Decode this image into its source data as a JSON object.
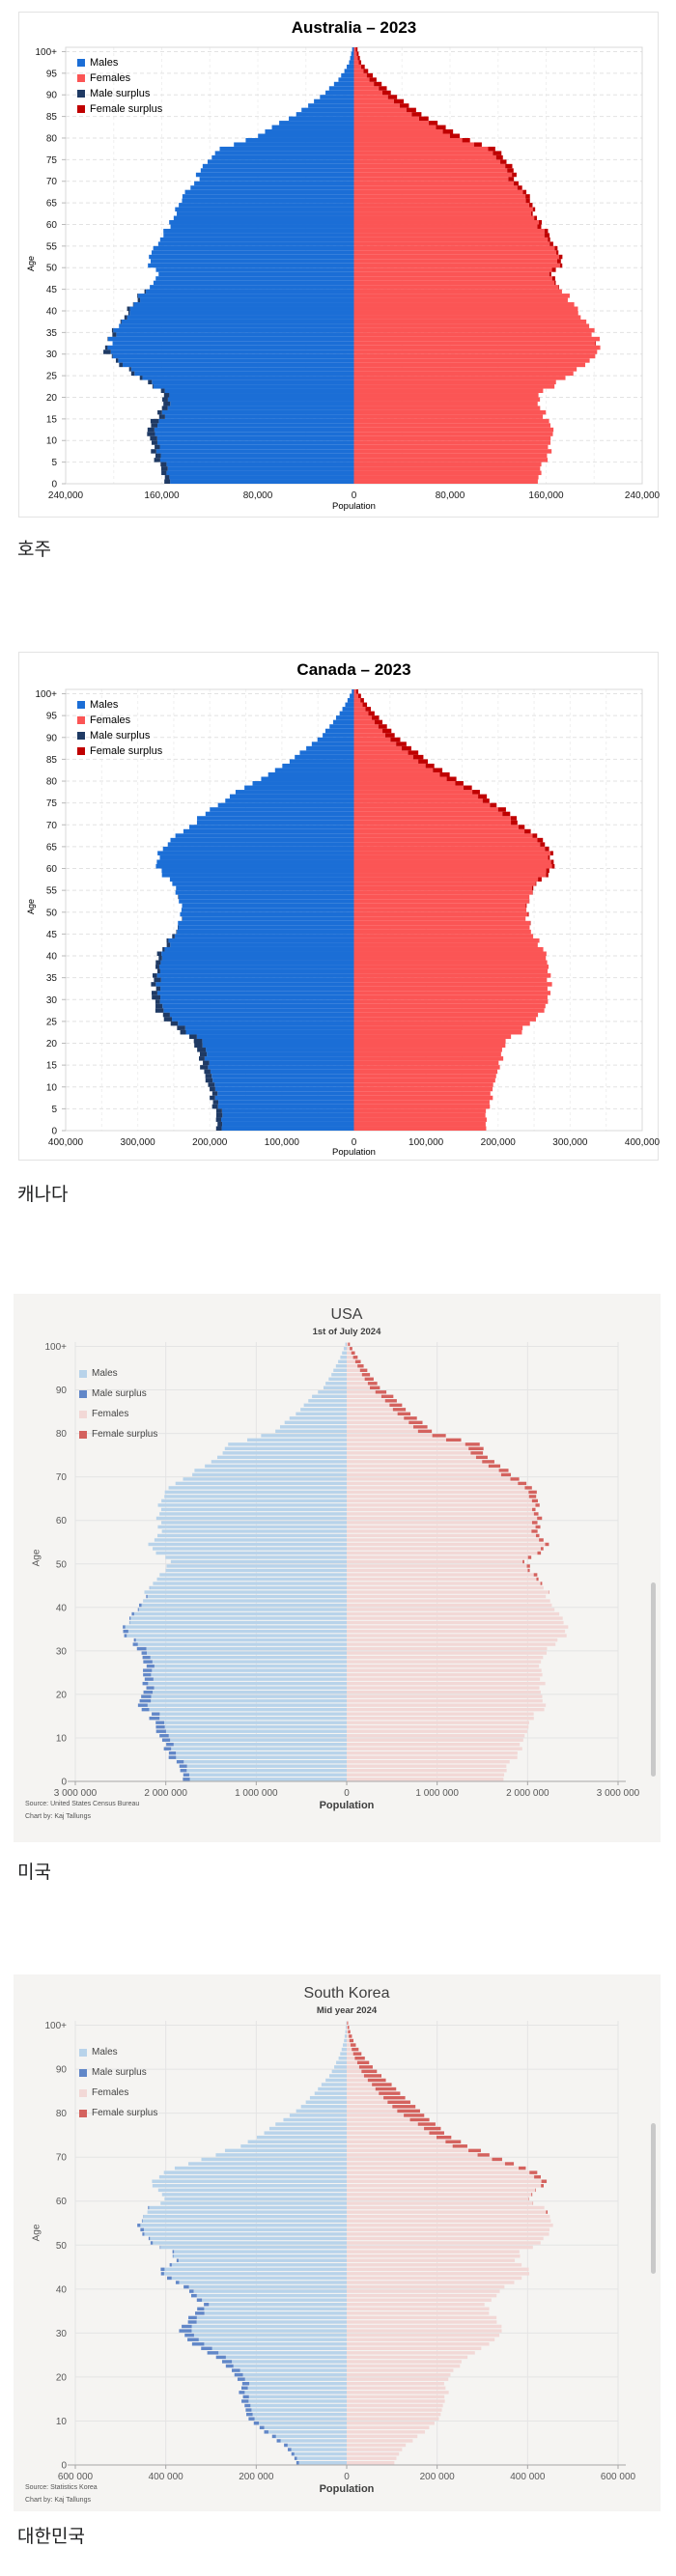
{
  "chart_data": [
    {
      "type": "bar",
      "variant": "population-pyramid",
      "title": "Australia – 2023",
      "caption": "호주",
      "xlabel": "Population",
      "ylabel": "Age",
      "x_max": 240000,
      "x_tick_step": 80000,
      "x_minor_step": 40000,
      "number_separator": ",",
      "x_tick_labels": [
        "240,000",
        "160,000",
        "80,000",
        "0",
        "80,000",
        "160,000",
        "240,000"
      ],
      "y_tick_labels": [
        "0",
        "5",
        "10",
        "15",
        "20",
        "25",
        "30",
        "35",
        "40",
        "45",
        "50",
        "55",
        "60",
        "65",
        "70",
        "75",
        "80",
        "85",
        "90",
        "95",
        "100+"
      ],
      "legend": [
        {
          "label": "Males",
          "color": "#1b6ed6"
        },
        {
          "label": "Females",
          "color": "#fb5555"
        },
        {
          "label": "Male surplus",
          "color": "#1f3a64"
        },
        {
          "label": "Female surplus",
          "color": "#c00000"
        }
      ],
      "colors": {
        "males": "#1b6ed6",
        "females": "#fb5555",
        "male_surplus": "#1f3a64",
        "female_surplus": "#c00000"
      },
      "ages": [
        0,
        2,
        5,
        8,
        12,
        15,
        18,
        20,
        22,
        25,
        28,
        30,
        32,
        34,
        36,
        38,
        40,
        43,
        45,
        47,
        49,
        50,
        52,
        55,
        58,
        60,
        63,
        65,
        68,
        70,
        72,
        75,
        77,
        78,
        80,
        83,
        85,
        88,
        90,
        93,
        95,
        97,
        100
      ],
      "males": [
        156000,
        160000,
        164000,
        168000,
        170000,
        164000,
        158000,
        158000,
        167000,
        185000,
        197000,
        206000,
        205000,
        201000,
        197000,
        189000,
        186000,
        179000,
        173000,
        166000,
        165000,
        172000,
        170000,
        163000,
        156000,
        152000,
        147000,
        143000,
        138000,
        131000,
        128000,
        120000,
        110000,
        100000,
        80000,
        62000,
        48000,
        33000,
        24000,
        13000,
        8000,
        4000,
        1500
      ],
      "females": [
        151000,
        155000,
        159000,
        163000,
        165000,
        159000,
        154000,
        154000,
        164000,
        183000,
        195000,
        202000,
        204000,
        200000,
        196000,
        188000,
        185000,
        178000,
        173000,
        167000,
        167000,
        174000,
        173000,
        166000,
        159000,
        155000,
        150000,
        146000,
        141000,
        135000,
        132000,
        126000,
        116000,
        106000,
        88000,
        70000,
        56000,
        41000,
        31000,
        19000,
        12000,
        6000,
        3000
      ]
    },
    {
      "type": "bar",
      "variant": "population-pyramid",
      "title": "Canada – 2023",
      "caption": "캐나다",
      "xlabel": "Population",
      "ylabel": "Age",
      "x_max": 400000,
      "x_tick_step": 100000,
      "x_minor_step": 50000,
      "number_separator": ",",
      "x_tick_labels": [
        "400,000",
        "300,000",
        "200,000",
        "100,000",
        "0",
        "100,000",
        "200,000",
        "300,000",
        "400,000"
      ],
      "y_tick_labels": [
        "0",
        "5",
        "10",
        "15",
        "20",
        "25",
        "30",
        "35",
        "40",
        "45",
        "50",
        "55",
        "60",
        "65",
        "70",
        "75",
        "80",
        "85",
        "90",
        "95",
        "100+"
      ],
      "legend": [
        {
          "label": "Males",
          "color": "#1b6ed6"
        },
        {
          "label": "Females",
          "color": "#fb5555"
        },
        {
          "label": "Male surplus",
          "color": "#1f3a64"
        },
        {
          "label": "Female surplus",
          "color": "#c00000"
        }
      ],
      "colors": {
        "males": "#1b6ed6",
        "females": "#fb5555",
        "male_surplus": "#1f3a64",
        "female_surplus": "#c00000"
      },
      "ages": [
        0,
        3,
        5,
        8,
        12,
        15,
        17,
        20,
        22,
        25,
        27,
        30,
        32,
        35,
        38,
        40,
        43,
        45,
        48,
        50,
        53,
        55,
        57,
        59,
        61,
        63,
        65,
        68,
        70,
        73,
        75,
        78,
        80,
        83,
        85,
        88,
        90,
        93,
        95,
        97,
        100
      ],
      "males": [
        189000,
        192000,
        194000,
        199000,
        204000,
        212000,
        214000,
        222000,
        240000,
        263000,
        272000,
        277000,
        280000,
        276000,
        272000,
        269000,
        258000,
        251000,
        243000,
        240000,
        243000,
        247000,
        255000,
        269000,
        274000,
        269000,
        258000,
        240000,
        222000,
        199000,
        181000,
        152000,
        129000,
        99000,
        82000,
        58000,
        44000,
        29000,
        20000,
        12000,
        3000
      ],
      "females": [
        181000,
        184000,
        186000,
        191000,
        196000,
        203000,
        205000,
        211000,
        229000,
        253000,
        262000,
        268000,
        272000,
        270000,
        267000,
        265000,
        255000,
        249000,
        242000,
        240000,
        244000,
        249000,
        258000,
        273000,
        279000,
        275000,
        264000,
        247000,
        230000,
        208000,
        191000,
        163000,
        142000,
        112000,
        96000,
        72000,
        57000,
        40000,
        29000,
        18000,
        6000
      ]
    },
    {
      "type": "bar",
      "variant": "population-pyramid",
      "title": "USA",
      "subtitle": "1st of July 2024",
      "caption": "미국",
      "xlabel": "Population",
      "ylabel": "Age",
      "x_max": 3000000,
      "x_tick_step": 1000000,
      "x_minor_step": 1000000,
      "number_separator": " ",
      "x_tick_labels": [
        "3 000 000",
        "2 000 000",
        "1 000 000",
        "0",
        "1 000 000",
        "2 000 000",
        "3 000 000"
      ],
      "y_tick_labels": [
        "0",
        "10",
        "20",
        "30",
        "40",
        "50",
        "60",
        "70",
        "80",
        "90",
        "100+"
      ],
      "source_lines": [
        "Source: United States Census Bureau",
        "Chart by: Kaj Tallungs"
      ],
      "legend": [
        {
          "label": "Males",
          "color": "#b8d3ea"
        },
        {
          "label": "Male surplus",
          "color": "#6187c8"
        },
        {
          "label": "Females",
          "color": "#f2d8d6"
        },
        {
          "label": "Female surplus",
          "color": "#d4625e"
        }
      ],
      "colors": {
        "males": "#b8d3ea",
        "females": "#f2d8d6",
        "male_surplus": "#6187c8",
        "female_surplus": "#d4625e"
      },
      "ages": [
        0,
        3,
        5,
        8,
        10,
        13,
        15,
        17,
        19,
        21,
        24,
        27,
        30,
        32,
        34,
        36,
        38,
        40,
        43,
        45,
        47,
        50,
        52,
        54,
        57,
        60,
        63,
        66,
        68,
        70,
        73,
        75,
        77,
        78,
        80,
        83,
        85,
        88,
        90,
        93,
        95,
        97,
        100
      ],
      "males": [
        1790000,
        1860000,
        1940000,
        2020000,
        2060000,
        2100000,
        2180000,
        2310000,
        2250000,
        2240000,
        2260000,
        2220000,
        2290000,
        2400000,
        2470000,
        2420000,
        2350000,
        2260000,
        2220000,
        2180000,
        2080000,
        1950000,
        2100000,
        2170000,
        2040000,
        2080000,
        2060000,
        1990000,
        1920000,
        1740000,
        1490000,
        1390000,
        1290000,
        1100000,
        790000,
        630000,
        510000,
        380000,
        260000,
        170000,
        120000,
        70000,
        15000
      ],
      "females": [
        1710000,
        1780000,
        1860000,
        1930000,
        1970000,
        2010000,
        2090000,
        2210000,
        2150000,
        2150000,
        2170000,
        2130000,
        2210000,
        2360000,
        2440000,
        2400000,
        2340000,
        2250000,
        2220000,
        2190000,
        2100000,
        1970000,
        2140000,
        2220000,
        2090000,
        2140000,
        2120000,
        2070000,
        2000000,
        1840000,
        1610000,
        1530000,
        1450000,
        1260000,
        940000,
        780000,
        650000,
        510000,
        370000,
        260000,
        190000,
        120000,
        35000
      ]
    },
    {
      "type": "bar",
      "variant": "population-pyramid",
      "title": "South Korea",
      "subtitle": "Mid year 2024",
      "caption": "대한민국",
      "xlabel": "Population",
      "ylabel": "Age",
      "x_max": 600000,
      "x_tick_step": 200000,
      "x_minor_step": 200000,
      "number_separator": " ",
      "x_tick_labels": [
        "600 000",
        "400 000",
        "200 000",
        "0",
        "200 000",
        "400 000",
        "600 000"
      ],
      "y_tick_labels": [
        "0",
        "10",
        "20",
        "30",
        "40",
        "50",
        "60",
        "70",
        "80",
        "90",
        "100+"
      ],
      "source_lines": [
        "Source: Statistics Korea",
        "Chart by: Kaj Tallungs"
      ],
      "legend": [
        {
          "label": "Males",
          "color": "#b8d3ea"
        },
        {
          "label": "Male surplus",
          "color": "#6187c8"
        },
        {
          "label": "Females",
          "color": "#f2d8d6"
        },
        {
          "label": "Female surplus",
          "color": "#d4625e"
        }
      ],
      "colors": {
        "males": "#b8d3ea",
        "females": "#f2d8d6",
        "male_surplus": "#6187c8",
        "female_surplus": "#d4625e"
      },
      "ages": [
        0,
        2,
        4,
        6,
        8,
        10,
        12,
        14,
        16,
        18,
        20,
        22,
        24,
        26,
        28,
        30,
        32,
        34,
        36,
        38,
        40,
        42,
        44,
        46,
        48,
        50,
        52,
        54,
        56,
        58,
        60,
        62,
        64,
        66,
        68,
        70,
        72,
        74,
        76,
        78,
        80,
        82,
        84,
        86,
        88,
        90,
        92,
        94,
        96,
        98,
        100
      ],
      "males": [
        110000,
        122000,
        140000,
        165000,
        195000,
        216000,
        221000,
        228000,
        236000,
        230000,
        248000,
        266000,
        290000,
        325000,
        350000,
        366000,
        358000,
        335000,
        318000,
        340000,
        355000,
        400000,
        415000,
        382000,
        392000,
        435000,
        450000,
        458000,
        448000,
        432000,
        398000,
        420000,
        428000,
        400000,
        355000,
        295000,
        235000,
        200000,
        170000,
        140000,
        112000,
        90000,
        72000,
        55000,
        38000,
        28000,
        18000,
        11000,
        6000,
        3000,
        1000
      ],
      "females": [
        104000,
        115000,
        132000,
        156000,
        184000,
        204000,
        209000,
        215000,
        222000,
        217000,
        230000,
        246000,
        268000,
        300000,
        325000,
        342000,
        336000,
        318000,
        305000,
        330000,
        346000,
        392000,
        408000,
        376000,
        388000,
        430000,
        446000,
        453000,
        450000,
        430000,
        400000,
        426000,
        440000,
        415000,
        372000,
        320000,
        265000,
        233000,
        205000,
        182000,
        162000,
        140000,
        120000,
        98000,
        76000,
        58000,
        40000,
        26000,
        15000,
        8000,
        3000
      ]
    }
  ]
}
